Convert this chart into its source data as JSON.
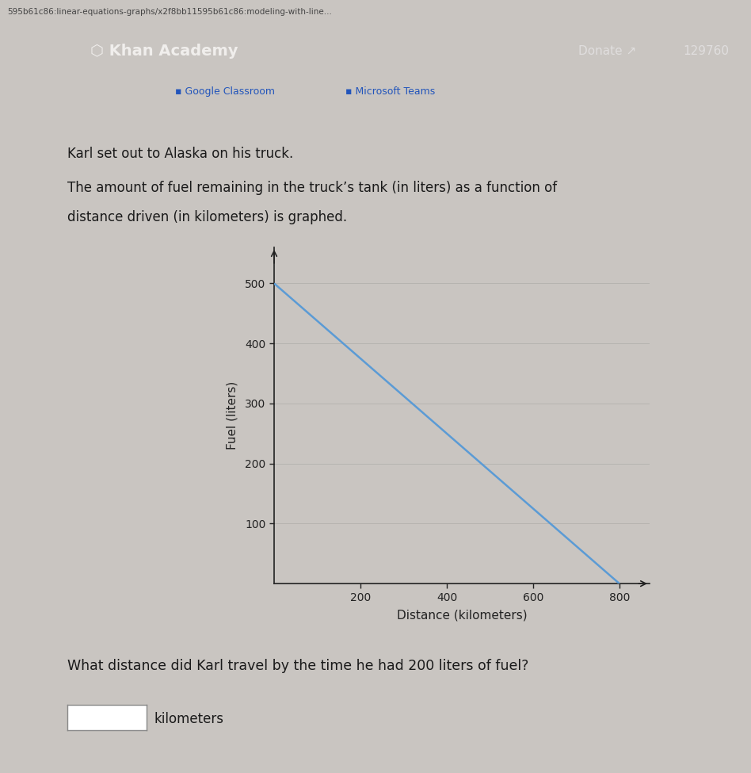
{
  "page_bg": "#c9c5c1",
  "url_bg": "#d6d2ce",
  "url_text": "595b61c86:linear-equations-graphs/x2f8bb11595b61c86:modeling-with-line...",
  "header_bg": "#4a5568",
  "header_text": "Khan Academy",
  "donate_text": "Donate",
  "score_text": "129760",
  "toolbar_bg": "#ccc8c4",
  "google_text": "Google Classroom",
  "ms_text": "Microsoft Teams",
  "separator_color": "#b0aca8",
  "content_bg": "#cac6c2",
  "title1": "Karl set out to Alaska on his truck.",
  "title2": "The amount of fuel remaining in the truck’s tank (in liters) as a function of",
  "title3": "distance driven (in kilometers) is graphed.",
  "question": "What distance did Karl travel by the time he had 200 liters of fuel?",
  "answer_unit": "kilometers",
  "line_x": [
    0,
    800
  ],
  "line_y": [
    500,
    0
  ],
  "line_color": "#5b9bd5",
  "line_width": 1.8,
  "xlabel": "Distance (kilometers)",
  "ylabel": "Fuel (liters)",
  "xticks": [
    200,
    400,
    600,
    800
  ],
  "yticks": [
    100,
    200,
    300,
    400,
    500
  ],
  "xlim": [
    0,
    870
  ],
  "ylim": [
    0,
    560
  ],
  "axis_color": "#222222",
  "tick_label_fontsize": 10,
  "axis_label_fontsize": 11,
  "graph_bg": "#c9c5c1",
  "grid_color": "#aaa8a5",
  "grid_alpha": 0.6,
  "text_color": "#1a1a1a"
}
